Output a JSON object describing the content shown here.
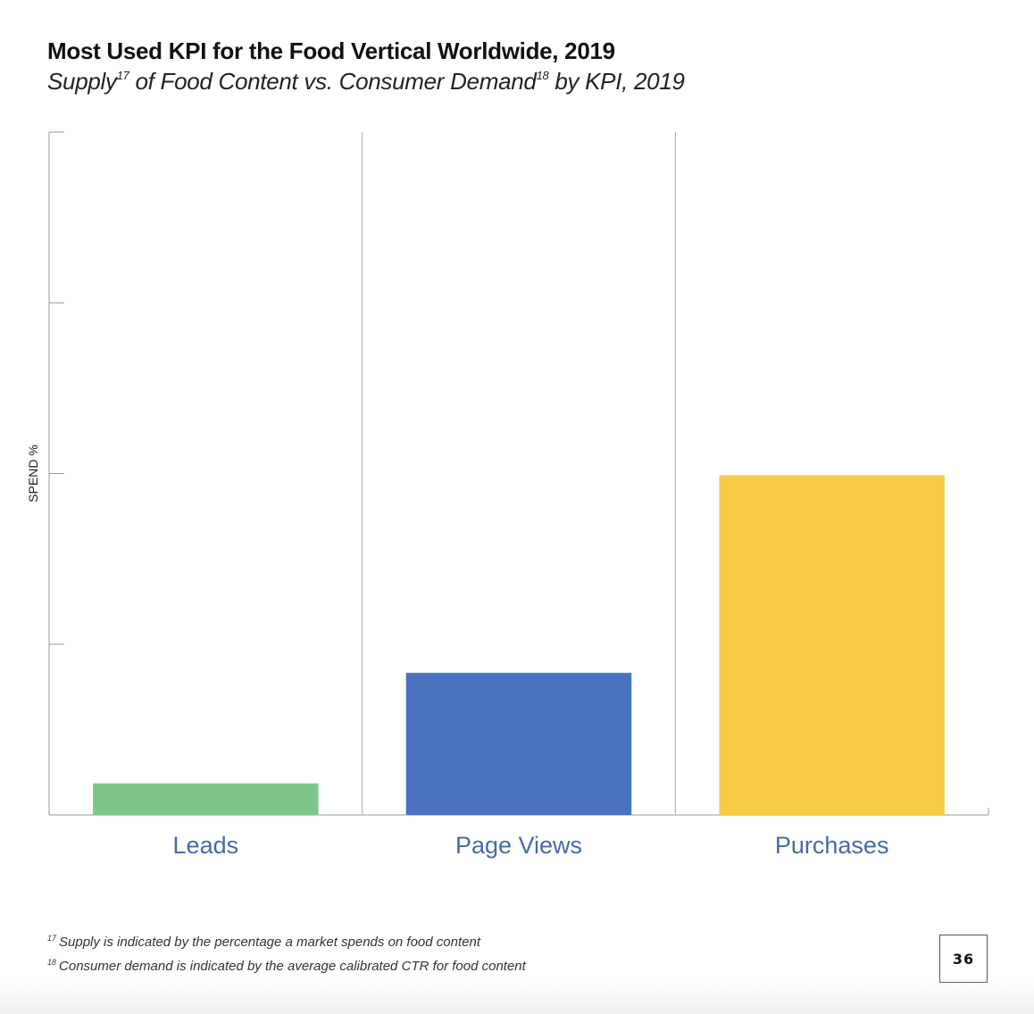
{
  "header": {
    "title": "Most Used KPI for the Food Vertical Worldwide, 2019",
    "subtitle_part1": "Supply",
    "subtitle_sup1": "17",
    "subtitle_part2": " of Food Content vs. Consumer Demand",
    "subtitle_sup2": "18",
    "subtitle_part3": " by KPI, 2019"
  },
  "chart_data": {
    "type": "bar",
    "title": "Most Used KPI for the Food Vertical Worldwide, 2019",
    "ylabel": "SPEND %",
    "xlabel": "",
    "categories": [
      "Leads",
      "Page Views",
      "Purchases"
    ],
    "values": [
      0.74,
      3.33,
      7.96
    ],
    "ylim": [
      0,
      16
    ],
    "colors": [
      "#7fc58a",
      "#4a72be",
      "#f6cb45"
    ],
    "y_ticks_labeled": false,
    "grid": "vertical separators between categories"
  },
  "footnotes": [
    {
      "num": "17",
      "text": "Supply is indicated by the percentage a market spends on food content"
    },
    {
      "num": "18",
      "text": "Consumer demand is indicated by the average calibrated CTR for food content"
    }
  ],
  "page_number": "36"
}
